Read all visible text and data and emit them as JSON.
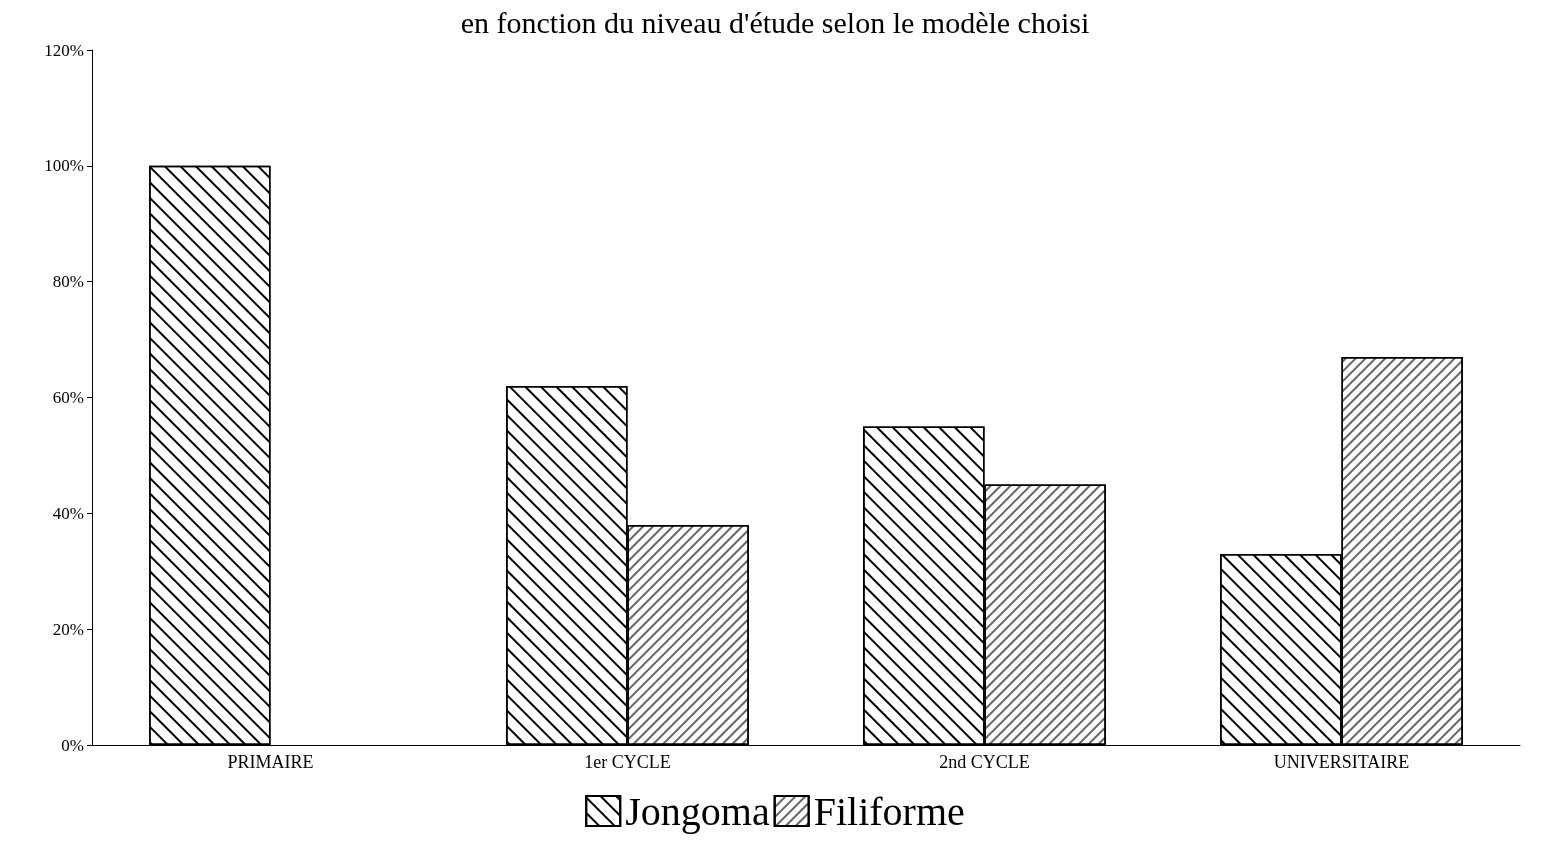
{
  "chart_data": {
    "type": "bar",
    "title": "en fonction du niveau d'étude selon le modèle choisi",
    "categories": [
      "PRIMAIRE",
      "1er CYCLE",
      "2nd CYCLE",
      "UNIVERSITAIRE"
    ],
    "series": [
      {
        "name": "Jongoma",
        "color": "#ffffff",
        "values": [
          100,
          62,
          55,
          33
        ]
      },
      {
        "name": "Filiforme",
        "color": "#ffffff",
        "values": [
          null,
          38,
          45,
          67
        ]
      }
    ],
    "ylim": [
      0,
      120
    ],
    "yticks": [
      {
        "value": 0,
        "label": "0%"
      },
      {
        "value": 20,
        "label": "20%"
      },
      {
        "value": 40,
        "label": "40%"
      },
      {
        "value": 60,
        "label": "60%"
      },
      {
        "value": 80,
        "label": "80%"
      },
      {
        "value": 100,
        "label": "100%"
      },
      {
        "value": 120,
        "label": "120%"
      }
    ],
    "grid": false,
    "legend": "bottom"
  }
}
